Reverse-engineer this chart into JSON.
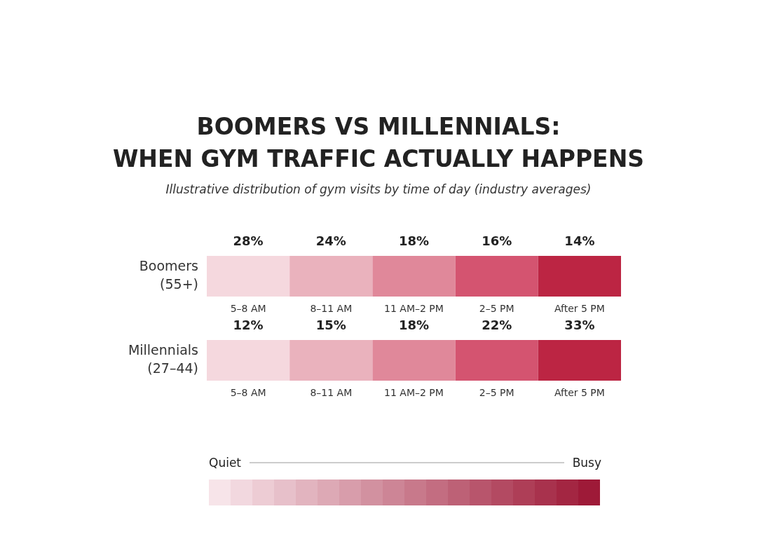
{
  "chart_data": {
    "type": "heatmap",
    "title": "BOOMERS VS MILLENNIALS:\nWHEN GYM TRAFFIC ACTUALLY HAPPENS",
    "subtitle": "Illustrative distribution of gym visits by time of day (industry averages)",
    "categories": [
      "5–8 AM",
      "8–11 AM",
      "11 AM–2 PM",
      "2–5 PM",
      "After 5 PM"
    ],
    "y_categories": [
      "Boomers\n(55+)",
      "Millennials\n(27–44)"
    ],
    "cells": [
      [
        28,
        24,
        18,
        16,
        14
      ],
      [
        12,
        15,
        18,
        22,
        33
      ]
    ],
    "cell_labels": [
      [
        "28%",
        "24%",
        "18%",
        "16%",
        "14%"
      ],
      [
        "12%",
        "15%",
        "18%",
        "22%",
        "33%"
      ]
    ],
    "colors": [
      "#f5d8de",
      "#eab2bd",
      "#e0889a",
      "#d45470",
      "#bc2543",
      "#f5d8de",
      "#eab2bd",
      "#e0889a",
      "#d45470",
      "#bc2543"
    ],
    "annotations": [
      "Quiet",
      "Busy"
    ]
  }
}
